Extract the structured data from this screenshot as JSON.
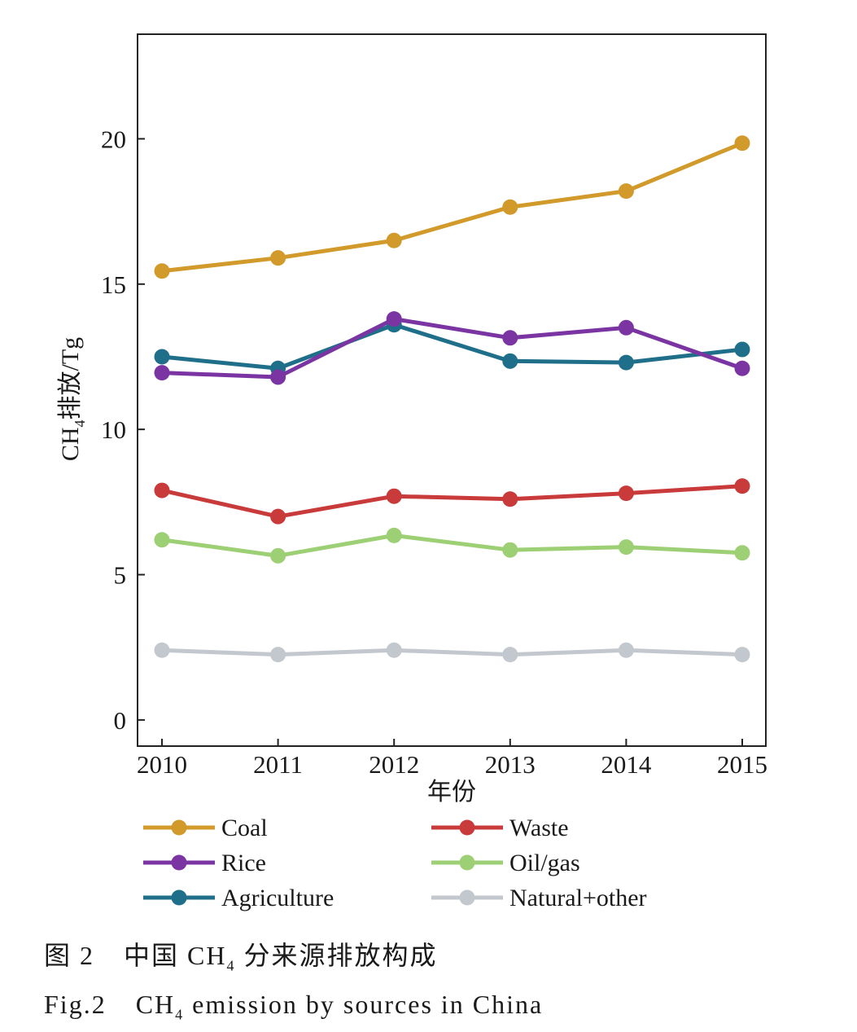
{
  "chart_data": {
    "type": "line",
    "ylabel_main": "CH",
    "ylabel_sub": "4",
    "ylabel_rest": "排放/Tg",
    "xlabel": "年份",
    "x": [
      2010,
      2011,
      2012,
      2013,
      2014,
      2015
    ],
    "ylim": [
      -0.9,
      23.6
    ],
    "yticks": [
      0,
      5,
      10,
      15,
      20
    ],
    "grid": false,
    "legend_position": "bottom",
    "series": [
      {
        "name": "Coal",
        "color": "#d19a2a",
        "values": [
          15.45,
          15.9,
          16.5,
          17.65,
          18.2,
          19.85
        ]
      },
      {
        "name": "Waste",
        "color": "#c93a3a",
        "values": [
          7.9,
          7.0,
          7.7,
          7.6,
          7.8,
          8.05
        ]
      },
      {
        "name": "Rice",
        "color": "#7b35a3",
        "values": [
          11.95,
          11.8,
          13.8,
          13.15,
          13.5,
          12.1
        ]
      },
      {
        "name": "Oil/gas",
        "color": "#9dcf74",
        "values": [
          6.2,
          5.65,
          6.35,
          5.85,
          5.95,
          5.75
        ]
      },
      {
        "name": "Agriculture",
        "color": "#1f6f8b",
        "values": [
          12.5,
          12.1,
          13.6,
          12.35,
          12.3,
          12.75
        ]
      },
      {
        "name": "Natural+other",
        "color": "#c3c8cf",
        "values": [
          2.4,
          2.25,
          2.4,
          2.25,
          2.4,
          2.25
        ]
      }
    ]
  },
  "caption": {
    "cn_fig": "图 2",
    "cn_text_before": "中国 CH",
    "cn_sub": "4",
    "cn_text_after": " 分来源排放构成",
    "en_fig": "Fig.2",
    "en_text_before": "CH",
    "en_sub": "4",
    "en_text_after": " emission by sources in China"
  }
}
